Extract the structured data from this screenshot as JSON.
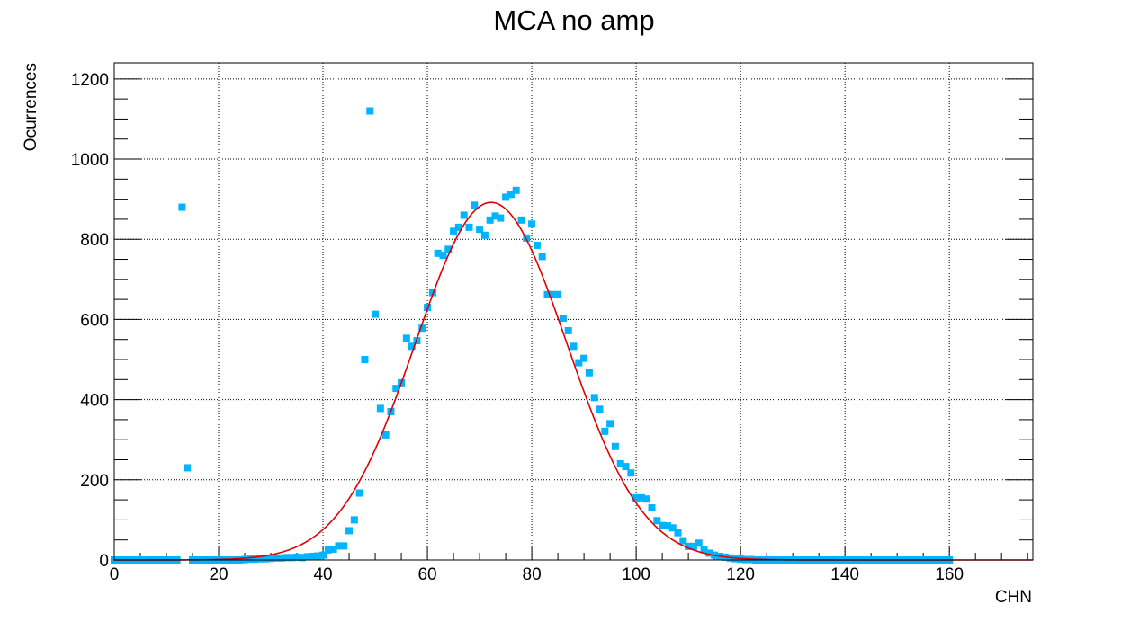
{
  "chart_data": {
    "type": "scatter",
    "title": "MCA no amp",
    "xlabel": "CHN",
    "ylabel": "Ocurrences",
    "xlim": [
      0,
      176
    ],
    "ylim": [
      0,
      1240
    ],
    "x_ticks": [
      0,
      20,
      40,
      60,
      80,
      100,
      120,
      140,
      160
    ],
    "y_ticks": [
      0,
      200,
      400,
      600,
      800,
      1000,
      1200
    ],
    "grid": true,
    "colors": {
      "points": "#00b4ff",
      "fit": "#e00000",
      "frame": "#000000",
      "grid": "#000000"
    },
    "series": [
      {
        "kind": "points",
        "x": [
          0,
          1,
          2,
          3,
          4,
          5,
          6,
          7,
          8,
          9,
          10,
          11,
          12,
          13,
          14,
          15,
          16,
          17,
          18,
          19,
          20,
          21,
          22,
          23,
          24,
          25,
          26,
          27,
          28,
          29,
          30,
          31,
          32,
          33,
          34,
          35,
          36,
          37,
          38,
          39,
          40,
          41,
          42,
          43,
          44,
          45,
          46,
          47,
          48,
          49,
          50,
          51,
          52,
          53,
          54,
          55,
          56,
          57,
          58,
          59,
          60,
          61,
          62,
          63,
          64,
          65,
          66,
          67,
          68,
          69,
          70,
          71,
          72,
          73,
          74,
          75,
          76,
          77,
          78,
          79,
          80,
          81,
          82,
          83,
          84,
          85,
          86,
          87,
          88,
          89,
          90,
          91,
          92,
          93,
          94,
          95,
          96,
          97,
          98,
          99,
          100,
          101,
          102,
          103,
          104,
          105,
          106,
          107,
          108,
          109,
          110,
          111,
          112,
          113,
          114,
          115,
          116,
          117,
          118,
          119,
          120,
          121,
          122,
          123,
          124,
          125,
          126,
          127,
          128,
          129,
          130,
          131,
          132,
          133,
          134,
          135,
          136,
          137,
          138,
          139,
          140,
          141,
          142,
          143,
          144,
          145,
          146,
          147,
          148,
          149,
          150,
          151,
          152,
          153,
          154,
          155,
          156,
          157,
          158,
          159,
          160
        ],
        "y": [
          0,
          0,
          0,
          0,
          0,
          0,
          0,
          0,
          0,
          0,
          0,
          0,
          0,
          880,
          230,
          0,
          0,
          0,
          0,
          0,
          0,
          0,
          0,
          0,
          0,
          1,
          2,
          2,
          3,
          3,
          4,
          5,
          5,
          6,
          6,
          7,
          6,
          8,
          9,
          10,
          12,
          25,
          27,
          35,
          35,
          73,
          100,
          167,
          500,
          1120,
          613,
          378,
          312,
          370,
          428,
          442,
          553,
          533,
          547,
          578,
          630,
          667,
          765,
          760,
          775,
          820,
          830,
          860,
          830,
          885,
          825,
          810,
          848,
          858,
          853,
          905,
          912,
          922,
          848,
          803,
          838,
          785,
          757,
          662,
          662,
          662,
          603,
          572,
          533,
          492,
          503,
          467,
          405,
          376,
          321,
          340,
          283,
          240,
          233,
          217,
          155,
          155,
          152,
          130,
          98,
          86,
          85,
          80,
          68,
          48,
          34,
          34,
          42,
          25,
          17,
          12,
          9,
          7,
          5,
          3,
          2,
          1,
          1,
          0,
          0,
          0,
          0,
          0,
          0,
          0,
          0,
          0,
          0,
          0,
          0,
          0,
          0,
          0,
          0,
          0,
          0,
          0,
          0,
          0,
          0,
          0,
          0,
          0,
          0,
          0,
          0,
          0,
          0,
          0,
          0,
          0,
          0,
          0,
          0,
          0,
          0
        ]
      },
      {
        "kind": "fit-curve",
        "amplitude": 892,
        "mean": 72.2,
        "sigma": 14.5,
        "x_range": [
          0,
          176
        ]
      }
    ]
  }
}
